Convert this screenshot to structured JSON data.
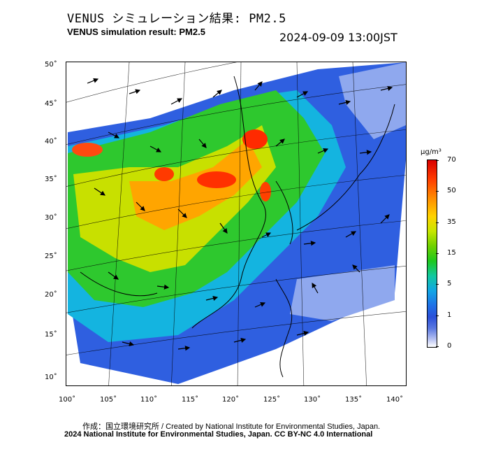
{
  "header": {
    "title_jp": "VENUS シミュレーション結果: PM2.5",
    "title_en": "VENUS simulation result: PM2.5",
    "timestamp": "2024-09-09 13:00JST"
  },
  "map": {
    "longitude_labels": [
      "100˚",
      "105˚",
      "110˚",
      "115˚",
      "120˚",
      "125˚",
      "130˚",
      "135˚",
      "140˚"
    ],
    "latitude_labels": [
      "50˚",
      "45˚",
      "40˚",
      "35˚",
      "30˚",
      "25˚",
      "20˚",
      "15˚",
      "10˚"
    ],
    "longitude_range": [
      100,
      140
    ],
    "latitude_range": [
      10,
      50
    ],
    "ocean_color": "#ffffff",
    "land_outline_color": "#000000"
  },
  "colorbar": {
    "unit": "μg/m³",
    "labels": [
      "70",
      "50",
      "35",
      "15",
      "5",
      "1",
      "0"
    ],
    "max_color": "#d90000",
    "mid_color": "#1ec81e",
    "low_color": "#1f6fe6",
    "min_color": "#ffffff"
  },
  "credits": {
    "line1": "作成：国立環境研究所 / Created by National Institute for Environmental Studies, Japan.",
    "line2": "2024 National Institute for Environmental Studies, Japan. CC BY-NC 4.0 International"
  }
}
